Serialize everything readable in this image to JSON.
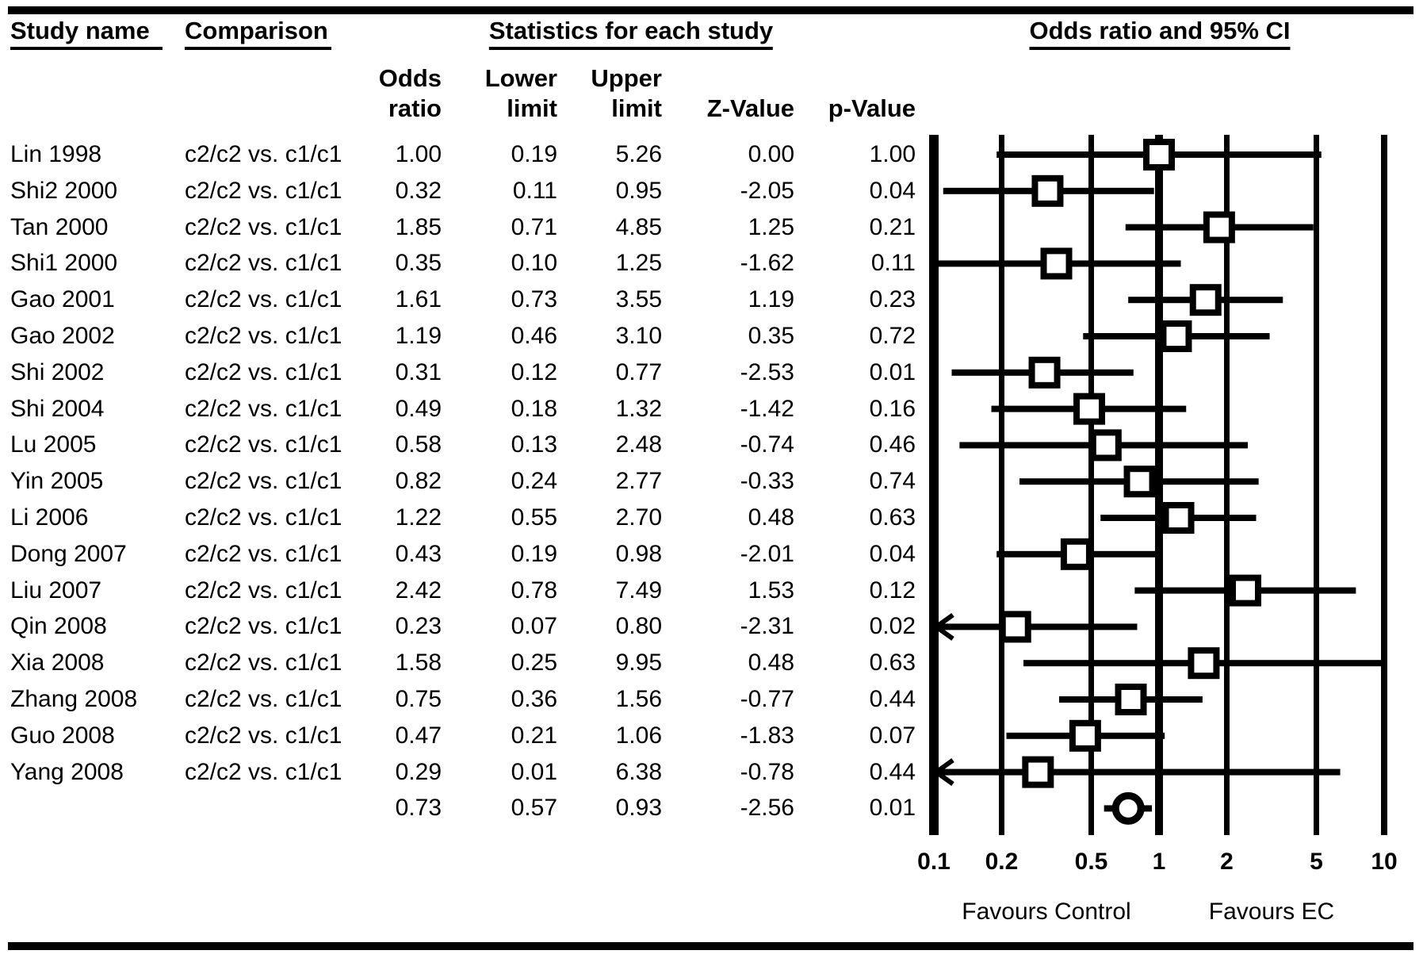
{
  "header": {
    "study_name": "Study name",
    "comparison": "Comparison",
    "stats_group": "Statistics for each study",
    "col_odds_ratio": [
      "Odds",
      "ratio"
    ],
    "col_lower": [
      "Lower",
      "limit"
    ],
    "col_upper": [
      "Upper",
      "limit"
    ],
    "col_z": "Z-Value",
    "col_p": "p-Value"
  },
  "chart_data": {
    "type": "forest",
    "title": "Odds ratio and 95% CI",
    "x_scale": "log",
    "xlim": [
      0.1,
      10
    ],
    "x_ticks": [
      "0.1",
      "0.2",
      "0.5",
      "1",
      "2",
      "5",
      "10"
    ],
    "footer_left": "Favours Control",
    "footer_right": "Favours EC",
    "marker": "open-square",
    "summary_marker": "open-circle",
    "ink_color": "#000000",
    "studies": [
      {
        "name": "Lin 1998",
        "comparison": "c2/c2 vs. c1/c1",
        "odds_ratio": "1.00",
        "lower": "0.19",
        "upper": "5.26",
        "z": "0.00",
        "p": "1.00"
      },
      {
        "name": "Shi2 2000",
        "comparison": "c2/c2 vs. c1/c1",
        "odds_ratio": "0.32",
        "lower": "0.11",
        "upper": "0.95",
        "z": "-2.05",
        "p": "0.04"
      },
      {
        "name": "Tan 2000",
        "comparison": "c2/c2 vs. c1/c1",
        "odds_ratio": "1.85",
        "lower": "0.71",
        "upper": "4.85",
        "z": "1.25",
        "p": "0.21"
      },
      {
        "name": "Shi1 2000",
        "comparison": "c2/c2 vs. c1/c1",
        "odds_ratio": "0.35",
        "lower": "0.10",
        "upper": "1.25",
        "z": "-1.62",
        "p": "0.11"
      },
      {
        "name": "Gao 2001",
        "comparison": "c2/c2 vs. c1/c1",
        "odds_ratio": "1.61",
        "lower": "0.73",
        "upper": "3.55",
        "z": "1.19",
        "p": "0.23"
      },
      {
        "name": "Gao 2002",
        "comparison": "c2/c2 vs. c1/c1",
        "odds_ratio": "1.19",
        "lower": "0.46",
        "upper": "3.10",
        "z": "0.35",
        "p": "0.72"
      },
      {
        "name": "Shi 2002",
        "comparison": "c2/c2 vs. c1/c1",
        "odds_ratio": "0.31",
        "lower": "0.12",
        "upper": "0.77",
        "z": "-2.53",
        "p": "0.01"
      },
      {
        "name": "Shi 2004",
        "comparison": "c2/c2 vs. c1/c1",
        "odds_ratio": "0.49",
        "lower": "0.18",
        "upper": "1.32",
        "z": "-1.42",
        "p": "0.16"
      },
      {
        "name": "Lu 2005",
        "comparison": "c2/c2 vs. c1/c1",
        "odds_ratio": "0.58",
        "lower": "0.13",
        "upper": "2.48",
        "z": "-0.74",
        "p": "0.46"
      },
      {
        "name": "Yin 2005",
        "comparison": "c2/c2 vs. c1/c1",
        "odds_ratio": "0.82",
        "lower": "0.24",
        "upper": "2.77",
        "z": "-0.33",
        "p": "0.74"
      },
      {
        "name": "Li 2006",
        "comparison": "c2/c2 vs. c1/c1",
        "odds_ratio": "1.22",
        "lower": "0.55",
        "upper": "2.70",
        "z": "0.48",
        "p": "0.63"
      },
      {
        "name": "Dong 2007",
        "comparison": "c2/c2 vs. c1/c1",
        "odds_ratio": "0.43",
        "lower": "0.19",
        "upper": "0.98",
        "z": "-2.01",
        "p": "0.04"
      },
      {
        "name": "Liu 2007",
        "comparison": "c2/c2 vs. c1/c1",
        "odds_ratio": "2.42",
        "lower": "0.78",
        "upper": "7.49",
        "z": "1.53",
        "p": "0.12"
      },
      {
        "name": "Qin 2008",
        "comparison": "c2/c2 vs. c1/c1",
        "odds_ratio": "0.23",
        "lower": "0.07",
        "upper": "0.80",
        "z": "-2.31",
        "p": "0.02"
      },
      {
        "name": "Xia 2008",
        "comparison": "c2/c2 vs. c1/c1",
        "odds_ratio": "1.58",
        "lower": "0.25",
        "upper": "9.95",
        "z": "0.48",
        "p": "0.63"
      },
      {
        "name": "Zhang 2008",
        "comparison": "c2/c2 vs. c1/c1",
        "odds_ratio": "0.75",
        "lower": "0.36",
        "upper": "1.56",
        "z": "-0.77",
        "p": "0.44"
      },
      {
        "name": "Guo 2008",
        "comparison": "c2/c2 vs. c1/c1",
        "odds_ratio": "0.47",
        "lower": "0.21",
        "upper": "1.06",
        "z": "-1.83",
        "p": "0.07"
      },
      {
        "name": "Yang 2008",
        "comparison": "c2/c2 vs. c1/c1",
        "odds_ratio": "0.29",
        "lower": "0.01",
        "upper": "6.38",
        "z": "-0.78",
        "p": "0.44"
      }
    ],
    "summary": {
      "odds_ratio": "0.73",
      "lower": "0.57",
      "upper": "0.93",
      "z": "-2.56",
      "p": "0.01"
    }
  }
}
